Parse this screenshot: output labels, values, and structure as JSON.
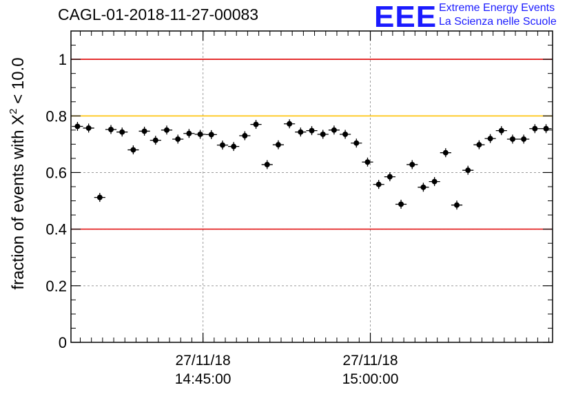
{
  "header": {
    "run_id": "CAGL-01-2018-11-27-00083",
    "logo_letters": "EEE",
    "logo_line1": "Extreme Energy Events",
    "logo_line2": "La Scienza nelle Scuole"
  },
  "colors": {
    "red_line": "#e00000",
    "yellow_line": "#ffc000",
    "logo_blue": "#1a1aff",
    "marker": "#000000"
  },
  "chart_data": {
    "type": "scatter",
    "ylabel_prefix": "fraction of events with X",
    "ylabel_sup": "2",
    "ylabel_suffix": " < 10.0",
    "ylim": [
      0,
      1.1
    ],
    "yticks": [
      0,
      0.2,
      0.4,
      0.6,
      0.8,
      1
    ],
    "ytick_labels": [
      "0",
      "0.2",
      "0.4",
      "0.6",
      "0.8",
      "1"
    ],
    "xlim": [
      "14:33:10",
      "15:16:20"
    ],
    "xticks": [
      {
        "time": "14:45:00",
        "date": "27/11/18",
        "label": "14:45:00"
      },
      {
        "time": "15:00:00",
        "date": "27/11/18",
        "label": "15:00:00"
      }
    ],
    "grid": true,
    "reference_lines": [
      {
        "y": 1.0,
        "color": "red"
      },
      {
        "y": 0.8,
        "color": "yellow"
      },
      {
        "y": 0.4,
        "color": "red"
      }
    ],
    "series": [
      {
        "x": [
          "14:33:45",
          "14:34:45",
          "14:35:45",
          "14:36:45",
          "14:37:45",
          "14:38:45",
          "14:39:45",
          "14:40:45",
          "14:41:45",
          "14:42:45",
          "14:43:45",
          "14:44:45",
          "14:45:45",
          "14:46:45",
          "14:47:45",
          "14:48:45",
          "14:49:45",
          "14:50:45",
          "14:51:45",
          "14:52:45",
          "14:53:45",
          "14:54:45",
          "14:55:45",
          "14:56:45",
          "14:57:45",
          "14:58:45",
          "14:59:45",
          "15:00:45",
          "15:01:45",
          "15:02:45",
          "15:03:45",
          "15:04:45",
          "15:05:45",
          "15:06:45",
          "15:07:45",
          "15:08:45",
          "15:09:45",
          "15:10:45",
          "15:11:45",
          "15:12:45",
          "15:13:45",
          "15:14:45",
          "15:15:45"
        ],
        "y": [
          0.763,
          0.757,
          0.512,
          0.752,
          0.743,
          0.68,
          0.746,
          0.714,
          0.75,
          0.718,
          0.738,
          0.735,
          0.734,
          0.697,
          0.692,
          0.73,
          0.77,
          0.628,
          0.698,
          0.772,
          0.743,
          0.748,
          0.735,
          0.75,
          0.735,
          0.704,
          0.637,
          0.558,
          0.585,
          0.488,
          0.628,
          0.548,
          0.568,
          0.67,
          0.485,
          0.608,
          0.698,
          0.72,
          0.748,
          0.718,
          0.718,
          0.755,
          0.755
        ]
      }
    ]
  }
}
